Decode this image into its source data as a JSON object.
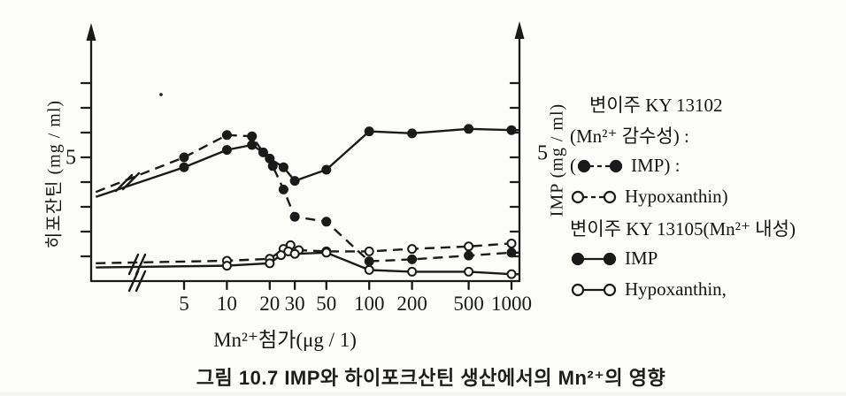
{
  "figure": {
    "caption": "그림 10.7 IMP와 하이포크산틴 생산에서의 Mn²⁺의 영향"
  },
  "chart_data": {
    "type": "line",
    "title": "",
    "x_axis": {
      "label": "Mn²⁺첨가(μg / 1)",
      "scale": "log",
      "ticks": [
        5,
        10,
        20,
        30,
        50,
        100,
        200,
        500,
        1000
      ],
      "has_break_before_first_tick": true
    },
    "y_axis_left": {
      "label": "히포잔틴 (mg / ml)",
      "shown_tick_label": "5",
      "tick_values": [
        1,
        2,
        3,
        4,
        5,
        6,
        7,
        8
      ],
      "ylim": [
        0,
        8
      ]
    },
    "y_axis_right": {
      "label": "IMP (mg / ml)",
      "shown_tick_label": "5",
      "tick_values": [
        1,
        2,
        3,
        4,
        5,
        6,
        7,
        8
      ],
      "ylim": [
        0,
        8
      ]
    },
    "note": "x = 1.2 encodes the unlabeled curve start left of the axis break; grid off; hand-drawn scan",
    "series": [
      {
        "id": "ky13102-imp",
        "name": "KY 13102 IMP (Mn²⁺ 감수성)",
        "line": "dashed",
        "marker": "filled",
        "points": [
          [
            1.2,
            3.6
          ],
          [
            5,
            5.0
          ],
          [
            10,
            5.9
          ],
          [
            15,
            5.85
          ],
          [
            21,
            4.65
          ],
          [
            25,
            3.7
          ],
          [
            30,
            2.6
          ],
          [
            50,
            2.4
          ],
          [
            100,
            0.8
          ],
          [
            200,
            0.88
          ],
          [
            500,
            1.03
          ],
          [
            1000,
            1.15
          ]
        ]
      },
      {
        "id": "ky13105-imp",
        "name": "KY 13105 IMP (Mn²⁺ 내성)",
        "line": "solid",
        "marker": "filled",
        "points": [
          [
            1.2,
            3.4
          ],
          [
            5,
            4.6
          ],
          [
            10,
            5.3
          ],
          [
            15,
            5.5
          ],
          [
            18,
            5.2
          ],
          [
            20,
            4.95
          ],
          [
            25,
            4.6
          ],
          [
            30,
            4.05
          ],
          [
            50,
            4.5
          ],
          [
            100,
            6.05
          ],
          [
            200,
            5.97
          ],
          [
            500,
            6.15
          ],
          [
            1000,
            6.1
          ]
        ]
      },
      {
        "id": "ky13102-hypoxanthin",
        "name": "KY 13102 Hypoxanthin (Mn²⁺ 감수성)",
        "line": "dashed",
        "marker": "open",
        "points": [
          [
            1.2,
            0.72
          ],
          [
            10,
            0.82
          ],
          [
            20,
            0.9
          ],
          [
            25,
            1.3
          ],
          [
            28,
            1.45
          ],
          [
            32,
            1.25
          ],
          [
            50,
            1.2
          ],
          [
            100,
            1.2
          ],
          [
            200,
            1.3
          ],
          [
            500,
            1.4
          ],
          [
            1000,
            1.52
          ]
        ]
      },
      {
        "id": "ky13105-hypoxanthin",
        "name": "KY 13105 Hypoxanthin (Mn²⁺ 내성)",
        "line": "solid",
        "marker": "open",
        "points": [
          [
            1.2,
            0.55
          ],
          [
            10,
            0.62
          ],
          [
            20,
            0.72
          ],
          [
            24,
            1.05
          ],
          [
            27,
            1.2
          ],
          [
            30,
            1.1
          ],
          [
            50,
            1.15
          ],
          [
            100,
            0.45
          ],
          [
            200,
            0.38
          ],
          [
            500,
            0.38
          ],
          [
            1000,
            0.28
          ]
        ]
      }
    ]
  },
  "legend": {
    "items": [
      {
        "type": "text",
        "text": "변이주 KY 13102",
        "indent": true
      },
      {
        "type": "text",
        "text": "(Mn²⁺ 감수성) :",
        "indent": false
      },
      {
        "type": "marker",
        "marker": "filled",
        "line": "dashed",
        "prefix": "(",
        "text": "IMP) :"
      },
      {
        "type": "marker",
        "marker": "open",
        "line": "dashed",
        "prefix": "",
        "text": "Hypoxanthin)"
      },
      {
        "type": "text",
        "text": "변이주 KY 13105(Mn²⁺ 내성)",
        "indent": false
      },
      {
        "type": "marker",
        "marker": "filled",
        "line": "solid",
        "prefix": "",
        "text": "IMP"
      },
      {
        "type": "marker",
        "marker": "open",
        "line": "solid",
        "prefix": "",
        "text": "Hypoxanthin,"
      }
    ]
  },
  "colors": {
    "ink": "#1a1a1a",
    "paper": "#fcfcf9"
  }
}
